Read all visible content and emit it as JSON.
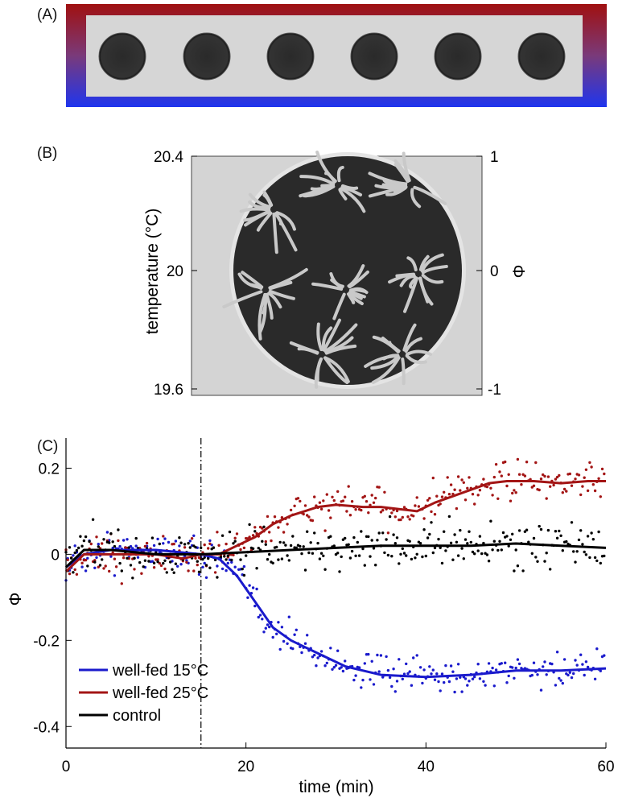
{
  "panels": {
    "a_label": "(A)",
    "b_label": "(B)",
    "c_label": "(C)"
  },
  "panel_b": {
    "left_axis_label": "temperature (°C)",
    "left_ticks": [
      "20.4",
      "20",
      "19.6"
    ],
    "right_axis_label": "Φ",
    "right_ticks": [
      "1",
      "0",
      "-1"
    ]
  },
  "chart_data": {
    "type": "scatter",
    "xlabel": "time (min)",
    "ylabel": "Φ",
    "xlim": [
      0,
      60
    ],
    "ylim": [
      -0.45,
      0.27
    ],
    "x_ticks": [
      "0",
      "20",
      "40",
      "60"
    ],
    "y_ticks": [
      "0.2",
      "0",
      "-0.2",
      "-0.4"
    ],
    "stimulus_time": 15,
    "legend_position": "bottom-left",
    "series": [
      {
        "name": "well-fed 15°C",
        "color": "#1a1acc",
        "smooth_line": {
          "x": [
            0,
            2,
            5,
            10,
            15,
            17,
            19,
            21,
            23,
            25,
            28,
            31,
            33,
            35,
            40,
            45,
            50,
            55,
            60
          ],
          "y": [
            -0.03,
            0.0,
            0.01,
            0.01,
            0.0,
            -0.01,
            -0.05,
            -0.11,
            -0.17,
            -0.2,
            -0.23,
            -0.26,
            -0.27,
            -0.28,
            -0.285,
            -0.28,
            -0.27,
            -0.27,
            -0.265
          ]
        }
      },
      {
        "name": "well-fed 25°C",
        "color": "#a31515",
        "smooth_line": {
          "x": [
            0,
            2,
            5,
            10,
            13,
            15,
            17,
            19,
            21,
            23,
            25,
            28,
            30,
            33,
            35,
            37,
            39,
            41,
            43,
            45,
            47,
            49,
            52,
            55,
            58,
            60
          ],
          "y": [
            -0.04,
            0.0,
            0.0,
            0.0,
            -0.01,
            0.0,
            0.0,
            0.02,
            0.04,
            0.07,
            0.09,
            0.11,
            0.115,
            0.11,
            0.11,
            0.105,
            0.1,
            0.12,
            0.135,
            0.15,
            0.165,
            0.17,
            0.17,
            0.165,
            0.17,
            0.17
          ]
        }
      },
      {
        "name": "control",
        "color": "#000000",
        "smooth_line": {
          "x": [
            0,
            2,
            5,
            10,
            15,
            20,
            25,
            30,
            35,
            40,
            45,
            50,
            55,
            60
          ],
          "y": [
            -0.03,
            0.01,
            0.01,
            0.0,
            0.0,
            0.005,
            0.01,
            0.015,
            0.02,
            0.02,
            0.02,
            0.025,
            0.02,
            0.015
          ]
        }
      }
    ]
  }
}
